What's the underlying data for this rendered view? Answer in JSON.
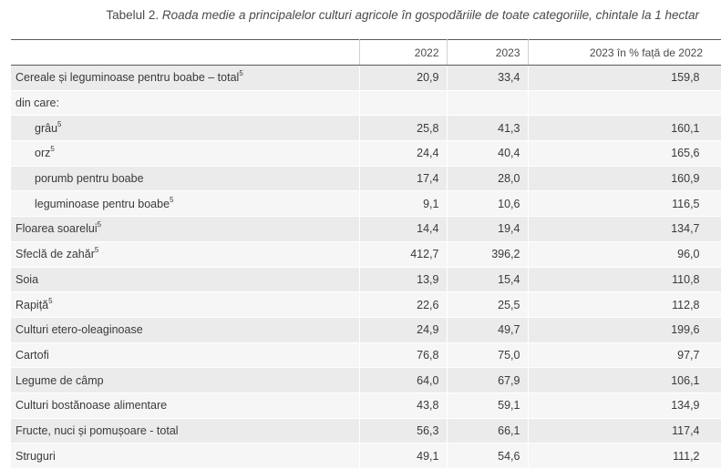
{
  "caption": {
    "prefix": "Tabelul 2. ",
    "title": "Roada medie a principalelor culturi agricole în gospodăriile de toate categoriile, chintale la 1 hectar"
  },
  "table": {
    "headers": [
      "",
      "2022",
      "2023",
      "2023 în % față de 2022"
    ],
    "rows": [
      {
        "label": "Cereale și leguminoase pentru boabe – total",
        "sup": "5",
        "indent": false,
        "v2022": "20,9",
        "v2023": "33,4",
        "pct": "159,8"
      },
      {
        "label": "din care:",
        "sup": "",
        "indent": false,
        "v2022": "",
        "v2023": "",
        "pct": ""
      },
      {
        "label": "grâu",
        "sup": "5",
        "indent": true,
        "v2022": "25,8",
        "v2023": "41,3",
        "pct": "160,1"
      },
      {
        "label": "orz",
        "sup": "5",
        "indent": true,
        "v2022": "24,4",
        "v2023": "40,4",
        "pct": "165,6"
      },
      {
        "label": "porumb pentru boabe",
        "sup": "",
        "indent": true,
        "v2022": "17,4",
        "v2023": "28,0",
        "pct": "160,9"
      },
      {
        "label": "leguminoase pentru boabe",
        "sup": "5",
        "indent": true,
        "v2022": "9,1",
        "v2023": "10,6",
        "pct": "116,5"
      },
      {
        "label": "Floarea soarelui",
        "sup": "5",
        "indent": false,
        "v2022": "14,4",
        "v2023": "19,4",
        "pct": "134,7"
      },
      {
        "label": "Sfeclă de zahăr",
        "sup": "5",
        "indent": false,
        "v2022": "412,7",
        "v2023": "396,2",
        "pct": "96,0"
      },
      {
        "label": "Soia",
        "sup": "",
        "indent": false,
        "v2022": "13,9",
        "v2023": "15,4",
        "pct": "110,8"
      },
      {
        "label": "Rapiță",
        "sup": "5",
        "indent": false,
        "v2022": "22,6",
        "v2023": "25,5",
        "pct": "112,8"
      },
      {
        "label": "Culturi etero-oleaginoase",
        "sup": "",
        "indent": false,
        "v2022": "24,9",
        "v2023": "49,7",
        "pct": "199,6"
      },
      {
        "label": "Cartofi",
        "sup": "",
        "indent": false,
        "v2022": "76,8",
        "v2023": "75,0",
        "pct": "97,7"
      },
      {
        "label": "Legume de câmp",
        "sup": "",
        "indent": false,
        "v2022": "64,0",
        "v2023": "67,9",
        "pct": "106,1"
      },
      {
        "label": "Culturi bostănoase alimentare",
        "sup": "",
        "indent": false,
        "v2022": "43,8",
        "v2023": "59,1",
        "pct": "134,9"
      },
      {
        "label": "Fructe, nuci și pomușoare - total",
        "sup": "",
        "indent": false,
        "v2022": "56,3",
        "v2023": "66,1",
        "pct": "117,4"
      },
      {
        "label": "Struguri",
        "sup": "",
        "indent": false,
        "v2022": "49,1",
        "v2023": "54,6",
        "pct": "111,2"
      }
    ]
  }
}
